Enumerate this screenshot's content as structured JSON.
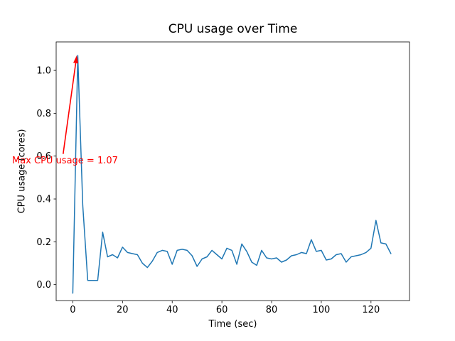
{
  "chart_data": {
    "type": "line",
    "title": "CPU usage over Time",
    "xlabel": "Time (sec)",
    "ylabel": "CPU usage (cores)",
    "series_name": "CPU usage",
    "line_color": "#1f77b4",
    "background_color": "#ffffff",
    "grid": false,
    "legend": "none",
    "xlim": [
      -6.7,
      135.5
    ],
    "ylim": [
      -0.075,
      1.133
    ],
    "xticks": [
      0,
      20,
      40,
      60,
      80,
      100,
      120
    ],
    "xtick_labels": [
      "0",
      "20",
      "40",
      "60",
      "80",
      "100",
      "120"
    ],
    "yticks": [
      0.0,
      0.2,
      0.4,
      0.6,
      0.8,
      1.0
    ],
    "ytick_labels": [
      "0.0",
      "0.2",
      "0.4",
      "0.6",
      "0.8",
      "1.0"
    ],
    "x": [
      0,
      2,
      4,
      6,
      8,
      10,
      12,
      14,
      16,
      18,
      20,
      22,
      24,
      26,
      28,
      30,
      32,
      34,
      36,
      38,
      40,
      42,
      44,
      46,
      48,
      50,
      52,
      54,
      56,
      58,
      60,
      62,
      64,
      66,
      68,
      70,
      72,
      74,
      76,
      78,
      80,
      82,
      84,
      86,
      88,
      90,
      92,
      94,
      96,
      98,
      100,
      102,
      104,
      106,
      108,
      110,
      112,
      114,
      116,
      118,
      120,
      122,
      124,
      126,
      128
    ],
    "y": [
      -0.04,
      1.07,
      0.37,
      0.02,
      0.02,
      0.02,
      0.245,
      0.13,
      0.14,
      0.125,
      0.175,
      0.15,
      0.145,
      0.14,
      0.1,
      0.08,
      0.11,
      0.15,
      0.16,
      0.155,
      0.095,
      0.16,
      0.165,
      0.16,
      0.135,
      0.085,
      0.12,
      0.13,
      0.16,
      0.14,
      0.12,
      0.17,
      0.16,
      0.095,
      0.19,
      0.155,
      0.105,
      0.09,
      0.16,
      0.125,
      0.12,
      0.125,
      0.105,
      0.115,
      0.135,
      0.14,
      0.15,
      0.145,
      0.21,
      0.155,
      0.16,
      0.115,
      0.12,
      0.14,
      0.145,
      0.105,
      0.13,
      0.135,
      0.14,
      0.15,
      0.17,
      0.3,
      0.195,
      0.19,
      0.145
    ],
    "annotation": {
      "text": "Max CPU usage = 1.07",
      "max_value": 1.07,
      "color": "#ff0000",
      "arrow_tip": [
        1.6,
        1.07
      ],
      "arrow_start": [
        -3.9,
        0.61
      ],
      "text_pos": [
        -24.5,
        0.578
      ]
    }
  }
}
